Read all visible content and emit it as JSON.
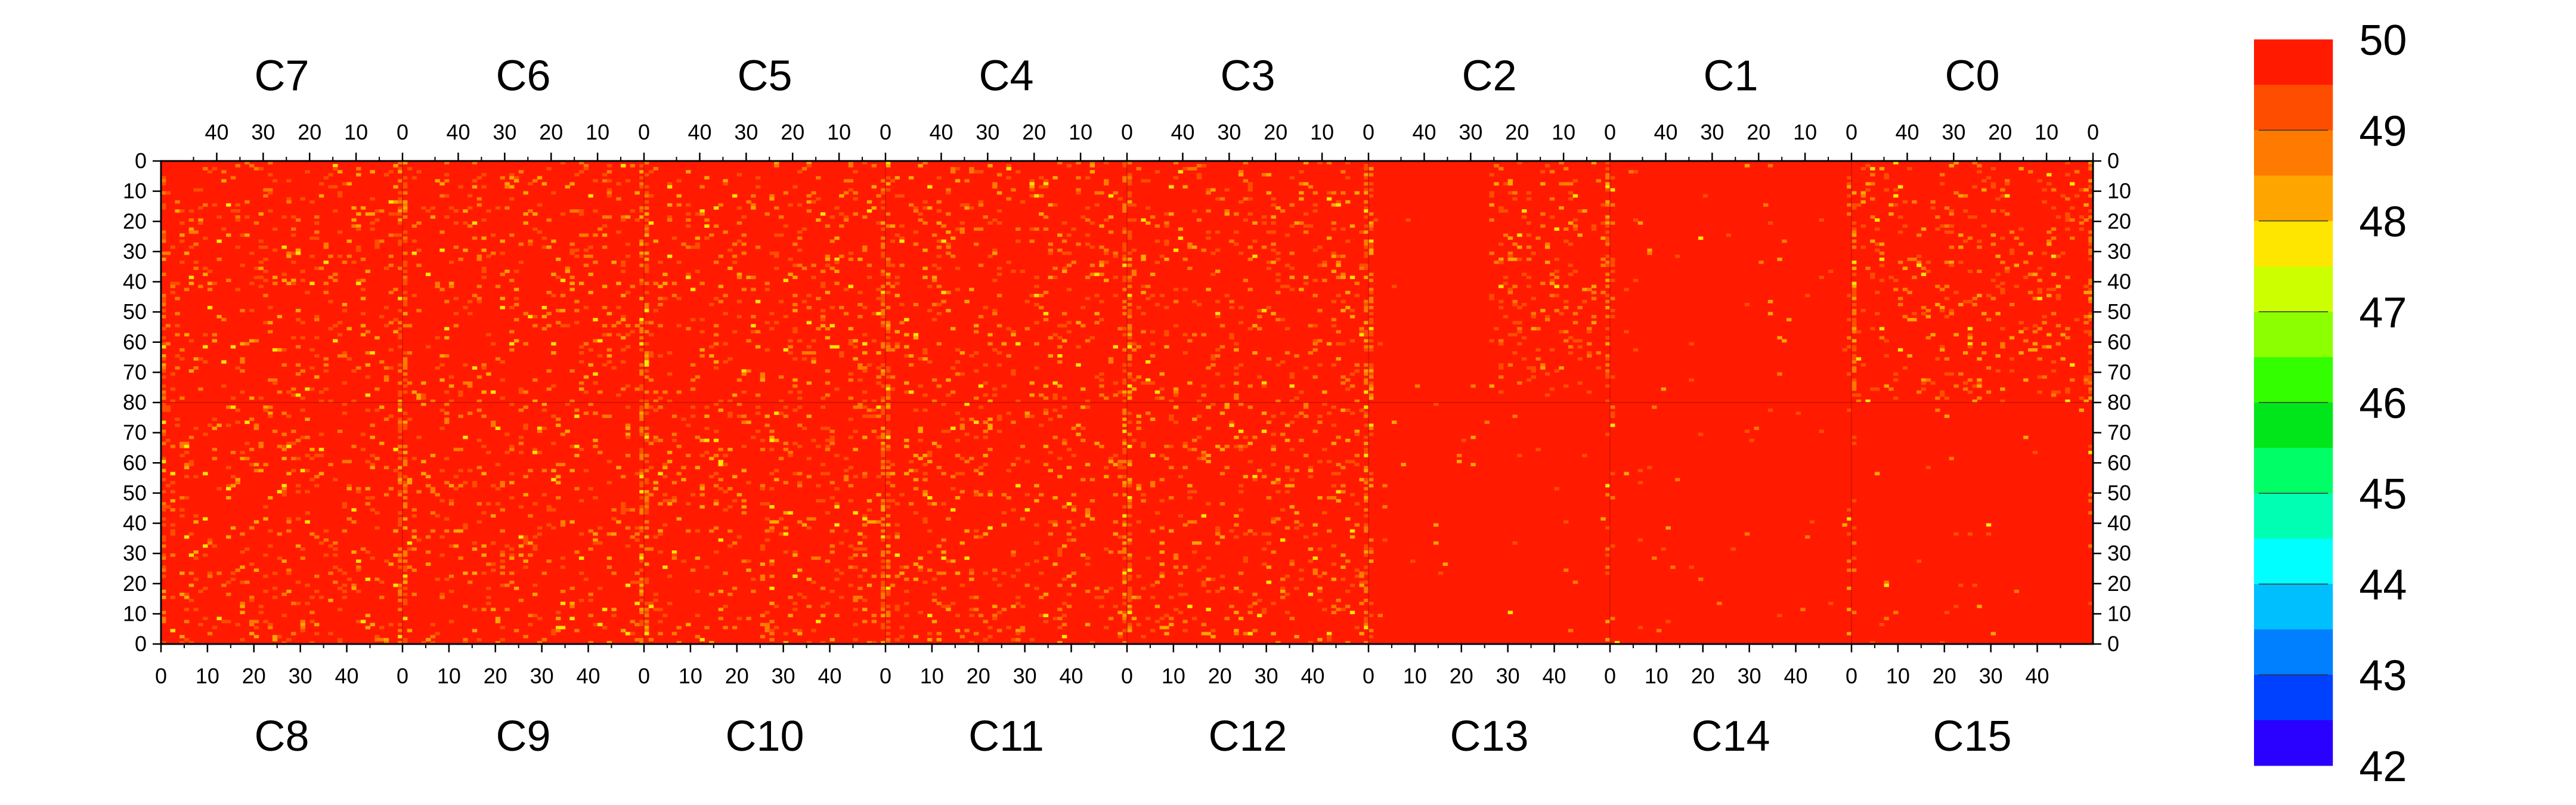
{
  "chart_data": {
    "type": "heatmap",
    "title": "",
    "xlabel": "",
    "ylabel": "",
    "top_chip_labels": [
      "C7",
      "C6",
      "C5",
      "C4",
      "C3",
      "C2",
      "C1",
      "C0"
    ],
    "bottom_chip_labels": [
      "C8",
      "C9",
      "C10",
      "C11",
      "C12",
      "C13",
      "C14",
      "C15"
    ],
    "x_tick_labels_top": [
      "40",
      "30",
      "20",
      "10",
      "0"
    ],
    "x_tick_values_top": [
      40,
      30,
      20,
      10,
      0
    ],
    "x_tick_labels_bottom": [
      "0",
      "10",
      "20",
      "30",
      "40"
    ],
    "x_tick_values_bottom": [
      0,
      10,
      20,
      30,
      40
    ],
    "columns_per_chip": 52,
    "rows_per_half": 80,
    "y_tick_labels_upper": [
      "0",
      "10",
      "20",
      "30",
      "40",
      "50",
      "60",
      "70",
      "80"
    ],
    "y_tick_values_upper": [
      0,
      10,
      20,
      30,
      40,
      50,
      60,
      70,
      80
    ],
    "y_tick_labels_lower": [
      "70",
      "60",
      "50",
      "40",
      "30",
      "20",
      "10",
      "0"
    ],
    "y_tick_values_lower": [
      70,
      60,
      50,
      40,
      30,
      20,
      10,
      0
    ],
    "z_range": [
      42,
      50
    ],
    "colorbar_tick_labels": [
      "50",
      "49",
      "48",
      "47",
      "46",
      "45",
      "44",
      "43",
      "42"
    ],
    "colorbar_tick_values": [
      50,
      49,
      48,
      47,
      46,
      45,
      44,
      43,
      42
    ],
    "colorbar_levels": 16,
    "dominant_value": 50,
    "sparse_values_typical": [
      49.5,
      49,
      48.5,
      48
    ],
    "noisy_columns_per_chip": [
      0,
      51
    ],
    "quiet_region_chips": [
      "C1",
      "C13",
      "C14",
      "C15"
    ],
    "grid": false,
    "legend": "colorbar-right",
    "palette": {
      "50.0": "#ff1a00",
      "49.5": "#ff4d00",
      "49.0": "#ff7a00",
      "48.5": "#ffa500",
      "48.0": "#ffe600",
      "47.5": "#ccff00",
      "47.0": "#8cff00",
      "46.5": "#33ff00",
      "46.0": "#00e61a",
      "45.5": "#00ff66",
      "45.0": "#00ffb3",
      "44.5": "#00ffff",
      "44.0": "#00bfff",
      "43.5": "#007fff",
      "43.0": "#0040ff",
      "42.5": "#2a00ff",
      "42.0": "#8000ff"
    },
    "colorbar_colors_top_to_bottom": [
      "#ff1a00",
      "#ff4d00",
      "#ff7a00",
      "#ffa500",
      "#ffe600",
      "#ccff00",
      "#8cff00",
      "#33ff00",
      "#00e61a",
      "#00ff66",
      "#00ffb3",
      "#00ffff",
      "#00bfff",
      "#007fff",
      "#0040ff",
      "#2a00ff"
    ]
  }
}
